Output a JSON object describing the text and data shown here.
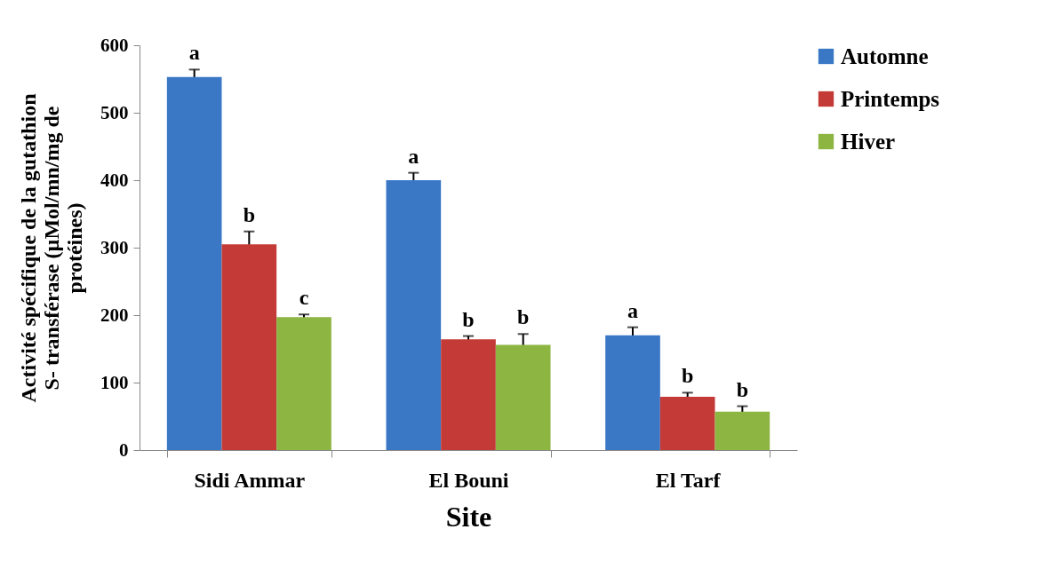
{
  "chart_data": {
    "type": "bar",
    "xlabel": "Site",
    "ylabel": "Activité spécifique de la gutathion S- transférase (µMol/mn/mg de protéines)",
    "categories": [
      "Sidi Ammar",
      "El Bouni",
      "El Tarf"
    ],
    "series": [
      {
        "name": "Automne",
        "color": "#3a78c6",
        "values": [
          553,
          400,
          170
        ],
        "errors": [
          11,
          11,
          12
        ],
        "value_labels": [
          "a",
          "a",
          "a"
        ]
      },
      {
        "name": "Printemps",
        "color": "#c43a37",
        "values": [
          305,
          164,
          79
        ],
        "errors": [
          19,
          5,
          6
        ],
        "value_labels": [
          "b",
          "b",
          "b"
        ]
      },
      {
        "name": "Hiver",
        "color": "#8db542",
        "values": [
          197,
          156,
          57
        ],
        "errors": [
          4,
          16,
          8
        ],
        "value_labels": [
          "c",
          "b",
          "b"
        ]
      }
    ],
    "ylim": [
      0,
      600
    ],
    "yticks": [
      0,
      100,
      200,
      300,
      400,
      500,
      600
    ],
    "grid": false,
    "legend": "right"
  }
}
